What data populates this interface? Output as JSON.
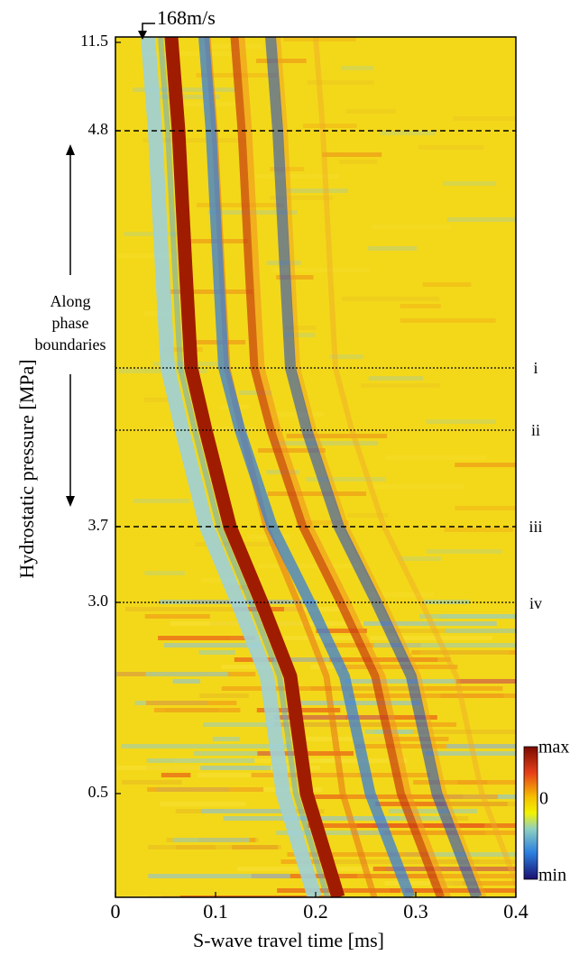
{
  "chart_data": {
    "type": "heatmap",
    "x_label": "S-wave travel time [ms]",
    "y_label": "Hydrostatic pressure [MPa]",
    "xlim": [
      0,
      0.4
    ],
    "xticks": [
      0,
      0.1,
      0.2,
      0.3,
      0.4
    ],
    "yticks": [
      11.5,
      4.8,
      3.7,
      {
        "value": 3,
        "label": "3.0"
      },
      0.5
    ],
    "velocity_label": "168m/s",
    "phase_note": [
      "Along",
      "phase",
      "boundaries"
    ],
    "boundary_labels": [
      "i",
      "ii",
      "iii",
      "iv"
    ],
    "colorbar_labels": [
      "max",
      "0",
      "min"
    ]
  }
}
